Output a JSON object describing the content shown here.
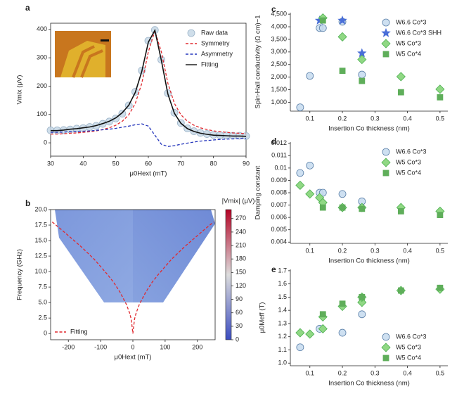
{
  "chart_data": [
    {
      "type": "line",
      "label": "a",
      "xlabel": "μ0Hext (mT)",
      "ylabel": "Vmix (μV)",
      "frame": true,
      "legend": "upper right",
      "xlim": [
        30,
        90
      ],
      "xticks": [
        30,
        40,
        50,
        60,
        70,
        80,
        90
      ],
      "ylim": [
        -47,
        422
      ],
      "yticks": [
        0,
        100,
        200,
        300,
        400
      ],
      "x": [
        30,
        32,
        34,
        36,
        38,
        40,
        42,
        44,
        46,
        48,
        50,
        52,
        54,
        56,
        58,
        60,
        62,
        64,
        66,
        68,
        70,
        72,
        74,
        76,
        78,
        80,
        82,
        84,
        86,
        88,
        90
      ],
      "series": [
        {
          "name": "Raw data",
          "marker": "circle",
          "color": "#c7d8e6",
          "edge": "#9db4c9",
          "values": [
            44,
            44,
            45,
            47,
            50,
            52,
            56,
            60,
            67,
            75,
            86,
            103,
            132,
            180,
            255,
            360,
            398,
            293,
            175,
            106,
            70,
            51,
            41,
            35,
            31,
            28,
            27,
            26,
            25,
            25,
            24
          ]
        },
        {
          "name": "Symmetry",
          "line": "dashed",
          "color": "#e0282e",
          "values": [
            31,
            31,
            32,
            34,
            35,
            37,
            39,
            42,
            47,
            53,
            62,
            76,
            99,
            139,
            210,
            321,
            395,
            321,
            210,
            139,
            99,
            76,
            62,
            53,
            47,
            42,
            39,
            37,
            35,
            34,
            32
          ]
        },
        {
          "name": "Asymmetry",
          "line": "dashed",
          "color": "#2233bb",
          "values": [
            37,
            37,
            38,
            39,
            40,
            41,
            42,
            44,
            46,
            48,
            51,
            55,
            59,
            64,
            67,
            59,
            27,
            -5,
            -13,
            -10,
            -5,
            -1,
            3,
            6,
            8,
            10,
            12,
            13,
            14,
            15,
            16
          ]
        },
        {
          "name": "Fitting",
          "line": "solid",
          "color": "#111111",
          "values": [
            43,
            43,
            45,
            48,
            50,
            53,
            56,
            61,
            68,
            76,
            88,
            106,
            133,
            178,
            252,
            355,
            397,
            291,
            172,
            104,
            69,
            50,
            40,
            34,
            30,
            27,
            26,
            25,
            24,
            24,
            23
          ]
        }
      ]
    },
    {
      "type": "heatmap",
      "label": "b",
      "xlabel": "μ0Hext (mT)",
      "ylabel": "Frequency (GHz)",
      "frame": true,
      "legend": "lower left",
      "xlim": [
        -255,
        255
      ],
      "xticks": [
        -200,
        -100,
        0,
        100,
        200
      ],
      "ylim": [
        -1,
        20
      ],
      "yticks": [
        0,
        2.5,
        {
          "value": 5,
          "label": "5.0"
        },
        7.5,
        {
          "value": 10,
          "label": "10.0"
        },
        12.5,
        {
          "value": 15,
          "label": "15.0"
        },
        17.5,
        {
          "value": 20,
          "label": "20.0"
        }
      ],
      "colorbar": {
        "label": "|Vmix| (μV)",
        "lim": [
          0,
          290
        ],
        "ticks": [
          0,
          30,
          60,
          90,
          120,
          150,
          180,
          210,
          240,
          270
        ]
      },
      "series": [
        {
          "name": "Fitting",
          "line": "dashed",
          "color": "#e0282e",
          "x": [
            -250,
            -220,
            -200,
            -180,
            -160,
            -140,
            -120,
            -100,
            -80,
            -60,
            -40,
            -20,
            -10,
            -5,
            0,
            5,
            10,
            20,
            40,
            60,
            80,
            100,
            120,
            140,
            160,
            180,
            200,
            220,
            250
          ],
          "values": [
            18.0,
            16.7,
            15.8,
            14.9,
            14.0,
            13.0,
            12.0,
            10.8,
            9.6,
            8.3,
            6.7,
            4.7,
            3.3,
            2.3,
            0,
            2.3,
            3.3,
            4.7,
            6.7,
            8.3,
            9.6,
            10.8,
            12.0,
            13.0,
            14.0,
            14.9,
            15.8,
            16.7,
            18.0
          ]
        }
      ]
    },
    {
      "type": "scatter",
      "label": "c",
      "xlabel": "Insertion Co thickness (nm)",
      "ylabel": "Spin-Hall conductivity (Ω cm)−1",
      "frame": false,
      "legend": "upper right",
      "xlim": [
        0.04,
        0.524
      ],
      "xticks": [
        0.1,
        0.2,
        0.3,
        0.4,
        0.5
      ],
      "ylim": [
        650,
        4560
      ],
      "yticks": [
        {
          "value": 1000,
          "label": "1,000"
        },
        {
          "value": 1500,
          "label": "1,500"
        },
        {
          "value": 2000,
          "label": "2,000"
        },
        {
          "value": 2500,
          "label": "2,500"
        },
        {
          "value": 3000,
          "label": "3,000"
        },
        {
          "value": 3500,
          "label": "3,500"
        },
        {
          "value": 4000,
          "label": "4,000"
        },
        {
          "value": 4500,
          "label": "4,500"
        }
      ],
      "series": [
        {
          "name": "W6.6 Co*3",
          "marker": "circle",
          "color": "#c6dbef",
          "edge": "#5a7fa8",
          "x": [
            0.07,
            0.1,
            0.13,
            0.14,
            0.2,
            0.26
          ],
          "values": [
            800,
            2050,
            3950,
            3950,
            4200,
            2100
          ]
        },
        {
          "name": "W6.6 Co*3 SHH",
          "marker": "star",
          "color": "#4a6fd8",
          "edge": "#4a6fd8",
          "x": [
            0.13,
            0.2,
            0.26
          ],
          "values": [
            4250,
            4250,
            2950
          ]
        },
        {
          "name": "W5 Co*3",
          "marker": "diamond",
          "color": "#90d884",
          "edge": "#4caf50",
          "x": [
            0.14,
            0.2,
            0.26,
            0.38,
            0.5
          ],
          "values": [
            4350,
            3600,
            2700,
            2020,
            1520
          ]
        },
        {
          "name": "W5 Co*4",
          "marker": "square",
          "color": "#5fae5a",
          "edge": "#5fae5a",
          "x": [
            0.14,
            0.2,
            0.26,
            0.38,
            0.5
          ],
          "values": [
            4250,
            2250,
            1850,
            1400,
            1200
          ]
        }
      ]
    },
    {
      "type": "scatter",
      "label": "d",
      "xlabel": "Insertion Co thickness (nm)",
      "ylabel": "Damping constant",
      "frame": false,
      "legend": "upper right",
      "xlim": [
        0.04,
        0.524
      ],
      "xticks": [
        0.1,
        0.2,
        0.3,
        0.4,
        0.5
      ],
      "ylim": [
        0.0039,
        0.0121
      ],
      "yticks": [
        0.004,
        0.005,
        0.006,
        0.007,
        0.008,
        0.009,
        0.01,
        0.011,
        0.012
      ],
      "series": [
        {
          "name": "W6.6 Co*3",
          "marker": "circle",
          "color": "#c6dbef",
          "edge": "#5a7fa8",
          "x": [
            0.07,
            0.1,
            0.13,
            0.14,
            0.2,
            0.26
          ],
          "values": [
            0.0096,
            0.0102,
            0.008,
            0.008,
            0.0079,
            0.0073
          ]
        },
        {
          "name": "W5 Co*3",
          "marker": "diamond",
          "color": "#90d884",
          "edge": "#4caf50",
          "x": [
            0.07,
            0.1,
            0.13,
            0.14,
            0.2,
            0.26,
            0.38,
            0.5
          ],
          "values": [
            0.0086,
            0.0079,
            0.0076,
            0.0072,
            0.0068,
            0.0068,
            0.0068,
            0.0065
          ]
        },
        {
          "name": "W5 Co*4",
          "marker": "square",
          "color": "#5fae5a",
          "edge": "#5fae5a",
          "x": [
            0.14,
            0.2,
            0.26,
            0.38,
            0.5
          ],
          "values": [
            0.0068,
            0.0068,
            0.0067,
            0.0065,
            0.0062
          ]
        }
      ]
    },
    {
      "type": "scatter",
      "label": "e",
      "xlabel": "Insertion Co thickness (nm)",
      "ylabel": "μ0Meff (T)",
      "frame": false,
      "legend": "lower right",
      "xlim": [
        0.04,
        0.524
      ],
      "xticks": [
        0.1,
        0.2,
        0.3,
        0.4,
        0.5
      ],
      "ylim": [
        0.98,
        1.71
      ],
      "yticks": [
        {
          "value": 1,
          "label": "1.0"
        },
        1.1,
        1.2,
        1.3,
        1.4,
        1.5,
        1.6,
        1.7
      ],
      "series": [
        {
          "name": "W6.6 Co*3",
          "marker": "circle",
          "color": "#c6dbef",
          "edge": "#5a7fa8",
          "x": [
            0.07,
            0.13,
            0.2,
            0.26
          ],
          "values": [
            1.12,
            1.26,
            1.23,
            1.37
          ]
        },
        {
          "name": "W5 Co*3",
          "marker": "diamond",
          "color": "#90d884",
          "edge": "#4caf50",
          "x": [
            0.07,
            0.1,
            0.14,
            0.14,
            0.2,
            0.26,
            0.26,
            0.38,
            0.5
          ],
          "values": [
            1.23,
            1.22,
            1.26,
            1.35,
            1.43,
            1.46,
            1.5,
            1.55,
            1.56
          ]
        },
        {
          "name": "W5 Co*4",
          "marker": "square",
          "color": "#5fae5a",
          "edge": "#5fae5a",
          "x": [
            0.14,
            0.2,
            0.26,
            0.38,
            0.5
          ],
          "values": [
            1.37,
            1.45,
            1.5,
            1.55,
            1.57
          ]
        }
      ]
    }
  ]
}
